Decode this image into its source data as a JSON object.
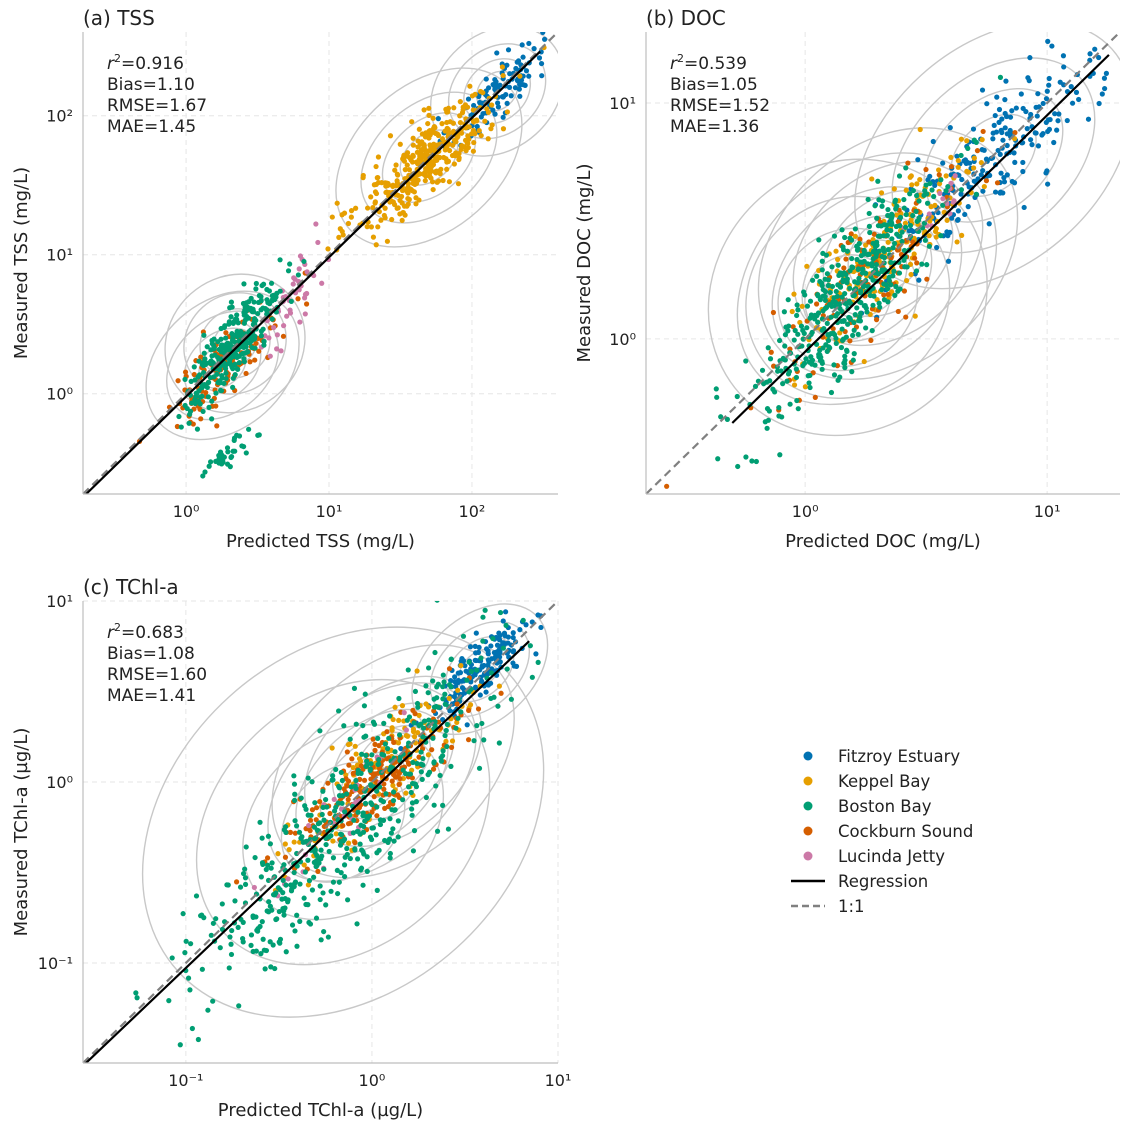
{
  "colors": {
    "Fitzroy Estuary": "#0072B2",
    "Keppel Bay": "#E69F00",
    "Boston Bay": "#009E73",
    "Cockburn Sound": "#D55E00",
    "Lucinda Jetty": "#CC79A7",
    "regression": "#000000",
    "one_to_one": "#808080",
    "contour": "#c8c8c8"
  },
  "legend": {
    "placement": "lower-right-empty-panel",
    "entries": [
      {
        "label": "Fitzroy Estuary",
        "kind": "marker"
      },
      {
        "label": "Keppel Bay",
        "kind": "marker"
      },
      {
        "label": "Boston Bay",
        "kind": "marker"
      },
      {
        "label": "Cockburn Sound",
        "kind": "marker"
      },
      {
        "label": "Lucinda Jetty",
        "kind": "marker"
      },
      {
        "label": "Regression",
        "kind": "solid-line"
      },
      {
        "label": "1:1",
        "kind": "dashed-line"
      }
    ]
  },
  "chart_data": [
    {
      "id": "tss",
      "type": "scatter",
      "xscale": "log",
      "yscale": "log",
      "title": "(a) TSS",
      "xlabel": "Predicted TSS (mg/L)",
      "ylabel": "Measured TSS (mg/L)",
      "xlim": [
        0.19,
        400
      ],
      "ylim": [
        0.19,
        400
      ],
      "grid": true,
      "ticks": [
        {
          "label": "10⁰",
          "value": 1
        },
        {
          "label": "10¹",
          "value": 10
        },
        {
          "label": "10²",
          "value": 100
        }
      ],
      "stats": [
        "r²=0.916",
        "Bias=1.10",
        "RMSE=1.67",
        "MAE=1.45"
      ],
      "regression": [
        [
          0.2,
          0.19
        ],
        [
          300,
          290
        ]
      ],
      "clusters": [
        {
          "series": "Fitzroy Estuary",
          "n": 110,
          "cx": 150,
          "cy": 150,
          "sx": 0.17,
          "sy": 0.2
        },
        {
          "series": "Keppel Bay",
          "n": 380,
          "cx": 50,
          "cy": 50,
          "sx": 0.25,
          "sy": 0.25
        },
        {
          "series": "Boston Bay",
          "n": 300,
          "cx": 2.2,
          "cy": 2.3,
          "sx": 0.17,
          "sy": 0.23
        },
        {
          "series": "Boston Bay",
          "n": 35,
          "cx": 1.9,
          "cy": 0.36,
          "sx": 0.08,
          "sy": 0.07
        },
        {
          "series": "Cockburn Sound",
          "n": 130,
          "cx": 1.8,
          "cy": 1.6,
          "sx": 0.2,
          "sy": 0.22
        },
        {
          "series": "Lucinda Jetty",
          "n": 45,
          "cx": 5.5,
          "cy": 4.5,
          "sx": 0.12,
          "sy": 0.22
        }
      ]
    },
    {
      "id": "doc",
      "type": "scatter",
      "xscale": "log",
      "yscale": "log",
      "title": "(b) DOC",
      "xlabel": "Predicted DOC (mg/L)",
      "ylabel": "Measured DOC (mg/L)",
      "xlim": [
        0.22,
        20
      ],
      "ylim": [
        0.22,
        20
      ],
      "grid": true,
      "ticks": [
        {
          "label": "10⁰",
          "value": 1
        },
        {
          "label": "10¹",
          "value": 10
        }
      ],
      "stats": [
        "r²=0.539",
        "Bias=1.05",
        "RMSE=1.52",
        "MAE=1.36"
      ],
      "regression": [
        [
          0.5,
          0.44
        ],
        [
          18,
          16
        ]
      ],
      "clusters": [
        {
          "series": "Fitzroy Estuary",
          "n": 230,
          "cx": 6,
          "cy": 6,
          "sx": 0.22,
          "sy": 0.22
        },
        {
          "series": "Keppel Bay",
          "n": 200,
          "cx": 2.2,
          "cy": 2.3,
          "sx": 0.2,
          "sy": 0.22
        },
        {
          "series": "Boston Bay",
          "n": 450,
          "cx": 1.5,
          "cy": 1.5,
          "sx": 0.2,
          "sy": 0.27
        },
        {
          "series": "Cockburn Sound",
          "n": 120,
          "cx": 1.8,
          "cy": 1.8,
          "sx": 0.2,
          "sy": 0.22
        },
        {
          "series": "Lucinda Jetty",
          "n": 15,
          "cx": 3.8,
          "cy": 3.9,
          "sx": 0.08,
          "sy": 0.08
        }
      ]
    },
    {
      "id": "tchl",
      "type": "scatter",
      "xscale": "log",
      "yscale": "log",
      "title": "(c) TChl-a",
      "xlabel": "Predicted TChl-a (µg/L)",
      "ylabel": "Measured TChl-a (µg/L)",
      "xlim": [
        0.028,
        10
      ],
      "ylim": [
        0.028,
        10
      ],
      "grid": true,
      "ticks": [
        {
          "label": "10⁻¹",
          "value": 0.1
        },
        {
          "label": "10⁰",
          "value": 1
        },
        {
          "label": "10¹",
          "value": 10
        }
      ],
      "stats": [
        "r²=0.683",
        "Bias=1.08",
        "RMSE=1.60",
        "MAE=1.41"
      ],
      "regression": [
        [
          0.028,
          0.027
        ],
        [
          7,
          6
        ]
      ],
      "clusters": [
        {
          "series": "Fitzroy Estuary",
          "n": 170,
          "cx": 3.8,
          "cy": 4.2,
          "sx": 0.14,
          "sy": 0.14
        },
        {
          "series": "Keppel Bay",
          "n": 150,
          "cx": 1.3,
          "cy": 1.3,
          "sx": 0.25,
          "sy": 0.25
        },
        {
          "series": "Boston Bay",
          "n": 520,
          "cx": 0.7,
          "cy": 0.6,
          "sx": 0.4,
          "sy": 0.45
        },
        {
          "series": "Cockburn Sound",
          "n": 220,
          "cx": 1.0,
          "cy": 1.0,
          "sx": 0.22,
          "sy": 0.2
        },
        {
          "series": "Lucinda Jetty",
          "n": 30,
          "cx": 0.7,
          "cy": 0.7,
          "sx": 0.15,
          "sy": 0.18
        }
      ]
    }
  ]
}
